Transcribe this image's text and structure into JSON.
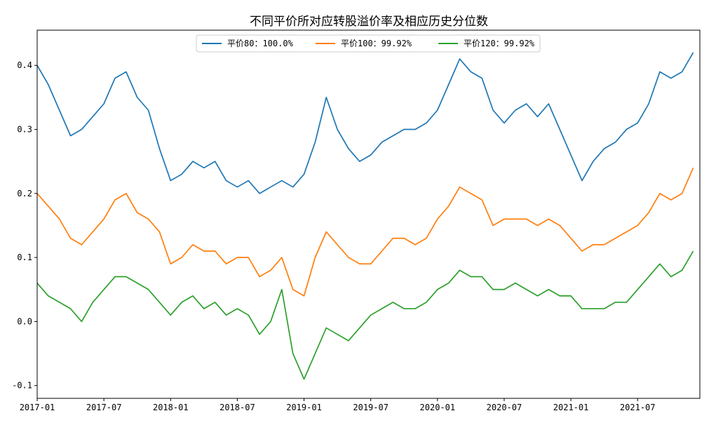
{
  "chart_data": {
    "type": "line",
    "title": "不同平价所对应转股溢价率及相应历史分位数",
    "xlabel": "",
    "ylabel": "",
    "xlim": [
      "2017-01",
      "2021-12"
    ],
    "ylim": [
      -0.12,
      0.455
    ],
    "x_ticks": [
      "2017-01",
      "2017-07",
      "2018-01",
      "2018-07",
      "2019-01",
      "2019-07",
      "2020-01",
      "2020-07",
      "2021-01",
      "2021-07"
    ],
    "y_ticks": [
      "-0.1",
      "0.0",
      "0.1",
      "0.2",
      "0.3",
      "0.4"
    ],
    "grid": false,
    "legend_position": "top-center",
    "series": [
      {
        "name": "平价80：100.0%",
        "color": "#1f77b4",
        "points": [
          [
            "2017-01",
            0.4
          ],
          [
            "2017-02",
            0.37
          ],
          [
            "2017-03",
            0.33
          ],
          [
            "2017-04",
            0.29
          ],
          [
            "2017-05",
            0.3
          ],
          [
            "2017-06",
            0.32
          ],
          [
            "2017-07",
            0.34
          ],
          [
            "2017-08",
            0.38
          ],
          [
            "2017-09",
            0.39
          ],
          [
            "2017-10",
            0.35
          ],
          [
            "2017-11",
            0.33
          ],
          [
            "2017-12",
            0.27
          ],
          [
            "2018-01",
            0.22
          ],
          [
            "2018-02",
            0.23
          ],
          [
            "2018-03",
            0.25
          ],
          [
            "2018-04",
            0.24
          ],
          [
            "2018-05",
            0.25
          ],
          [
            "2018-06",
            0.22
          ],
          [
            "2018-07",
            0.21
          ],
          [
            "2018-08",
            0.22
          ],
          [
            "2018-09",
            0.2
          ],
          [
            "2018-10",
            0.21
          ],
          [
            "2018-11",
            0.22
          ],
          [
            "2018-12",
            0.21
          ],
          [
            "2019-01",
            0.23
          ],
          [
            "2019-02",
            0.28
          ],
          [
            "2019-03",
            0.35
          ],
          [
            "2019-04",
            0.3
          ],
          [
            "2019-05",
            0.27
          ],
          [
            "2019-06",
            0.25
          ],
          [
            "2019-07",
            0.26
          ],
          [
            "2019-08",
            0.28
          ],
          [
            "2019-09",
            0.29
          ],
          [
            "2019-10",
            0.3
          ],
          [
            "2019-11",
            0.3
          ],
          [
            "2019-12",
            0.31
          ],
          [
            "2020-01",
            0.33
          ],
          [
            "2020-02",
            0.37
          ],
          [
            "2020-03",
            0.41
          ],
          [
            "2020-04",
            0.39
          ],
          [
            "2020-05",
            0.38
          ],
          [
            "2020-06",
            0.33
          ],
          [
            "2020-07",
            0.31
          ],
          [
            "2020-08",
            0.33
          ],
          [
            "2020-09",
            0.34
          ],
          [
            "2020-10",
            0.32
          ],
          [
            "2020-11",
            0.34
          ],
          [
            "2020-12",
            0.3
          ],
          [
            "2021-01",
            0.26
          ],
          [
            "2021-02",
            0.22
          ],
          [
            "2021-03",
            0.25
          ],
          [
            "2021-04",
            0.27
          ],
          [
            "2021-05",
            0.28
          ],
          [
            "2021-06",
            0.3
          ],
          [
            "2021-07",
            0.31
          ],
          [
            "2021-08",
            0.34
          ],
          [
            "2021-09",
            0.39
          ],
          [
            "2021-10",
            0.38
          ],
          [
            "2021-11",
            0.39
          ],
          [
            "2021-12",
            0.42
          ]
        ]
      },
      {
        "name": "平价100：99.92%",
        "color": "#ff7f0e",
        "points": [
          [
            "2017-01",
            0.2
          ],
          [
            "2017-02",
            0.18
          ],
          [
            "2017-03",
            0.16
          ],
          [
            "2017-04",
            0.13
          ],
          [
            "2017-05",
            0.12
          ],
          [
            "2017-06",
            0.14
          ],
          [
            "2017-07",
            0.16
          ],
          [
            "2017-08",
            0.19
          ],
          [
            "2017-09",
            0.2
          ],
          [
            "2017-10",
            0.17
          ],
          [
            "2017-11",
            0.16
          ],
          [
            "2017-12",
            0.14
          ],
          [
            "2018-01",
            0.09
          ],
          [
            "2018-02",
            0.1
          ],
          [
            "2018-03",
            0.12
          ],
          [
            "2018-04",
            0.11
          ],
          [
            "2018-05",
            0.11
          ],
          [
            "2018-06",
            0.09
          ],
          [
            "2018-07",
            0.1
          ],
          [
            "2018-08",
            0.1
          ],
          [
            "2018-09",
            0.07
          ],
          [
            "2018-10",
            0.08
          ],
          [
            "2018-11",
            0.1
          ],
          [
            "2018-12",
            0.05
          ],
          [
            "2019-01",
            0.04
          ],
          [
            "2019-02",
            0.1
          ],
          [
            "2019-03",
            0.14
          ],
          [
            "2019-04",
            0.12
          ],
          [
            "2019-05",
            0.1
          ],
          [
            "2019-06",
            0.09
          ],
          [
            "2019-07",
            0.09
          ],
          [
            "2019-08",
            0.11
          ],
          [
            "2019-09",
            0.13
          ],
          [
            "2019-10",
            0.13
          ],
          [
            "2019-11",
            0.12
          ],
          [
            "2019-12",
            0.13
          ],
          [
            "2020-01",
            0.16
          ],
          [
            "2020-02",
            0.18
          ],
          [
            "2020-03",
            0.21
          ],
          [
            "2020-04",
            0.2
          ],
          [
            "2020-05",
            0.19
          ],
          [
            "2020-06",
            0.15
          ],
          [
            "2020-07",
            0.16
          ],
          [
            "2020-08",
            0.16
          ],
          [
            "2020-09",
            0.16
          ],
          [
            "2020-10",
            0.15
          ],
          [
            "2020-11",
            0.16
          ],
          [
            "2020-12",
            0.15
          ],
          [
            "2021-01",
            0.13
          ],
          [
            "2021-02",
            0.11
          ],
          [
            "2021-03",
            0.12
          ],
          [
            "2021-04",
            0.12
          ],
          [
            "2021-05",
            0.13
          ],
          [
            "2021-06",
            0.14
          ],
          [
            "2021-07",
            0.15
          ],
          [
            "2021-08",
            0.17
          ],
          [
            "2021-09",
            0.2
          ],
          [
            "2021-10",
            0.19
          ],
          [
            "2021-11",
            0.2
          ],
          [
            "2021-12",
            0.24
          ]
        ]
      },
      {
        "name": "平价120：99.92%",
        "color": "#2ca02c",
        "points": [
          [
            "2017-01",
            0.06
          ],
          [
            "2017-02",
            0.04
          ],
          [
            "2017-03",
            0.03
          ],
          [
            "2017-04",
            0.02
          ],
          [
            "2017-05",
            0.0
          ],
          [
            "2017-06",
            0.03
          ],
          [
            "2017-07",
            0.05
          ],
          [
            "2017-08",
            0.07
          ],
          [
            "2017-09",
            0.07
          ],
          [
            "2017-10",
            0.06
          ],
          [
            "2017-11",
            0.05
          ],
          [
            "2017-12",
            0.03
          ],
          [
            "2018-01",
            0.01
          ],
          [
            "2018-02",
            0.03
          ],
          [
            "2018-03",
            0.04
          ],
          [
            "2018-04",
            0.02
          ],
          [
            "2018-05",
            0.03
          ],
          [
            "2018-06",
            0.01
          ],
          [
            "2018-07",
            0.02
          ],
          [
            "2018-08",
            0.01
          ],
          [
            "2018-09",
            -0.02
          ],
          [
            "2018-10",
            0.0
          ],
          [
            "2018-11",
            0.05
          ],
          [
            "2018-12",
            -0.05
          ],
          [
            "2019-01",
            -0.09
          ],
          [
            "2019-02",
            -0.05
          ],
          [
            "2019-03",
            -0.01
          ],
          [
            "2019-04",
            -0.02
          ],
          [
            "2019-05",
            -0.03
          ],
          [
            "2019-06",
            -0.01
          ],
          [
            "2019-07",
            0.01
          ],
          [
            "2019-08",
            0.02
          ],
          [
            "2019-09",
            0.03
          ],
          [
            "2019-10",
            0.02
          ],
          [
            "2019-11",
            0.02
          ],
          [
            "2019-12",
            0.03
          ],
          [
            "2020-01",
            0.05
          ],
          [
            "2020-02",
            0.06
          ],
          [
            "2020-03",
            0.08
          ],
          [
            "2020-04",
            0.07
          ],
          [
            "2020-05",
            0.07
          ],
          [
            "2020-06",
            0.05
          ],
          [
            "2020-07",
            0.05
          ],
          [
            "2020-08",
            0.06
          ],
          [
            "2020-09",
            0.05
          ],
          [
            "2020-10",
            0.04
          ],
          [
            "2020-11",
            0.05
          ],
          [
            "2020-12",
            0.04
          ],
          [
            "2021-01",
            0.04
          ],
          [
            "2021-02",
            0.02
          ],
          [
            "2021-03",
            0.02
          ],
          [
            "2021-04",
            0.02
          ],
          [
            "2021-05",
            0.03
          ],
          [
            "2021-06",
            0.03
          ],
          [
            "2021-07",
            0.05
          ],
          [
            "2021-08",
            0.07
          ],
          [
            "2021-09",
            0.09
          ],
          [
            "2021-10",
            0.07
          ],
          [
            "2021-11",
            0.08
          ],
          [
            "2021-12",
            0.11
          ]
        ]
      }
    ]
  }
}
